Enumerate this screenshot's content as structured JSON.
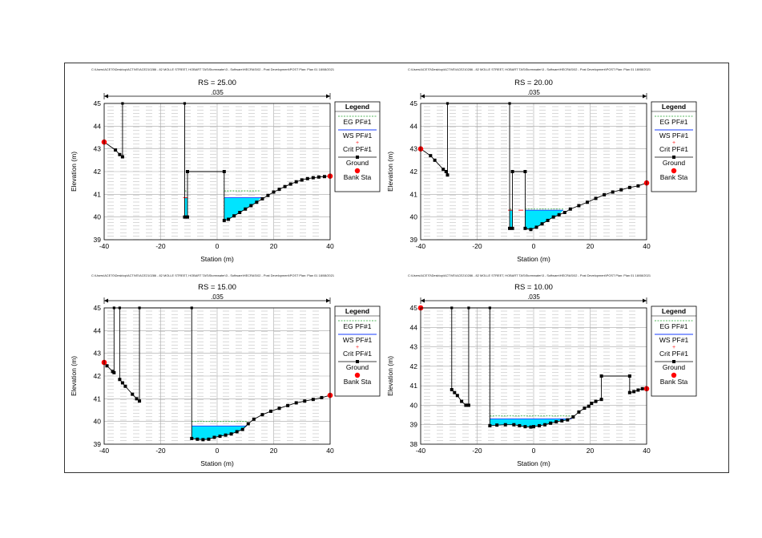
{
  "chart_data": [
    {
      "type": "line",
      "header": "C:\\Users\\ACE70\\Desktop\\ACTIVE\\ACE210286 - 82 MOLLE STREET, HOBART TAS\\Stormwater\\3 - Software\\HECRAS\\02 - Post Development\\POST     Plan: Plan 01     18/08/2021",
      "title": "RS = 25.00",
      "xlabel": "Station (m)",
      "ylabel": "Elevation (m)",
      "xlim": [
        -40,
        40
      ],
      "ylim": [
        39,
        45
      ],
      "xticks": [
        "-40",
        "-20",
        "0",
        "20",
        "40"
      ],
      "yticks": [
        "39",
        "40",
        "41",
        "42",
        "43",
        "44",
        "45"
      ],
      "manning": ".035",
      "grid": true,
      "legend_position": "right",
      "legend": {
        "title": "Legend",
        "items": [
          "EG PF#1",
          "WS PF#1",
          "Crit PF#1",
          "Ground",
          "Bank Sta"
        ]
      },
      "ground": [
        [
          -40,
          43.3
        ],
        [
          -36,
          42.95
        ],
        [
          -34.5,
          42.75
        ],
        [
          -33.5,
          42.65
        ],
        [
          -33.5,
          45
        ],
        [
          -11.5,
          45
        ],
        [
          -11.5,
          40.0
        ],
        [
          -10.5,
          40.0
        ],
        [
          -10.5,
          42.0
        ],
        [
          2.5,
          42.0
        ],
        [
          2.5,
          39.85
        ],
        [
          4,
          39.9
        ],
        [
          6,
          40.05
        ],
        [
          8,
          40.2
        ],
        [
          10,
          40.35
        ],
        [
          12,
          40.5
        ],
        [
          14,
          40.65
        ],
        [
          16,
          40.8
        ],
        [
          18,
          40.95
        ],
        [
          20,
          41.1
        ],
        [
          22,
          41.22
        ],
        [
          24,
          41.34
        ],
        [
          26,
          41.45
        ],
        [
          28,
          41.55
        ],
        [
          30,
          41.63
        ],
        [
          32,
          41.69
        ],
        [
          34,
          41.73
        ],
        [
          36,
          41.76
        ],
        [
          38,
          41.78
        ],
        [
          40,
          41.8
        ]
      ],
      "water_surface": 40.85,
      "energy_grade": 41.15,
      "wet_segments": [
        [
          -11.5,
          -10.5
        ],
        [
          2.5,
          15.5
        ]
      ],
      "crit_points": [
        [
          -11.2,
          40.85
        ]
      ],
      "bank_stations": [
        [
          -40,
          43.3
        ],
        [
          40,
          41.8
        ]
      ]
    },
    {
      "type": "line",
      "header": "C:\\Users\\ACE70\\Desktop\\ACTIVE\\ACE210286 - 82 MOLLE STREET, HOBART TAS\\Stormwater\\3 - Software\\HECRAS\\02 - Post Development\\POST     Plan: Plan 01     18/08/2021",
      "title": "RS = 20.00",
      "xlabel": "Station (m)",
      "ylabel": "Elevation (m)",
      "xlim": [
        -40,
        40
      ],
      "ylim": [
        39,
        45
      ],
      "xticks": [
        "-40",
        "-20",
        "0",
        "20",
        "40"
      ],
      "yticks": [
        "39",
        "40",
        "41",
        "42",
        "43",
        "44",
        "45"
      ],
      "manning": ".035",
      "grid": true,
      "legend_position": "right",
      "legend": {
        "title": "Legend",
        "items": [
          "EG PF#1",
          "WS PF#1",
          "Crit PF#1",
          "Ground",
          "Bank Sta"
        ]
      },
      "ground": [
        [
          -40,
          43.0
        ],
        [
          -36.5,
          42.7
        ],
        [
          -35,
          42.5
        ],
        [
          -32,
          42.1
        ],
        [
          -31,
          42.0
        ],
        [
          -30.5,
          41.85
        ],
        [
          -30.5,
          45
        ],
        [
          -8.5,
          45
        ],
        [
          -8.5,
          39.5
        ],
        [
          -7.5,
          39.5
        ],
        [
          -7.5,
          42.0
        ],
        [
          -3,
          42.0
        ],
        [
          -3,
          39.5
        ],
        [
          -1,
          39.45
        ],
        [
          1,
          39.55
        ],
        [
          3,
          39.7
        ],
        [
          5,
          39.85
        ],
        [
          7,
          40.0
        ],
        [
          9,
          40.1
        ],
        [
          11,
          40.2
        ],
        [
          13,
          40.35
        ],
        [
          16,
          40.5
        ],
        [
          19,
          40.65
        ],
        [
          22,
          40.82
        ],
        [
          25,
          40.98
        ],
        [
          28,
          41.1
        ],
        [
          31,
          41.2
        ],
        [
          34,
          41.3
        ],
        [
          37,
          41.37
        ],
        [
          40,
          41.5
        ]
      ],
      "water_surface": 40.3,
      "energy_grade": 40.35,
      "wet_segments": [
        [
          -8.5,
          -7.5
        ],
        [
          -3,
          10.5
        ]
      ],
      "crit_points": [
        [
          -8.2,
          40.3
        ],
        [
          -4.5,
          40.3
        ]
      ],
      "bank_stations": [
        [
          -40,
          43.0
        ],
        [
          40,
          41.5
        ]
      ]
    },
    {
      "type": "line",
      "header": "C:\\Users\\ACE70\\Desktop\\ACTIVE\\ACE210286 - 82 MOLLE STREET, HOBART TAS\\Stormwater\\3 - Software\\HECRAS\\02 - Post Development\\POST     Plan: Plan 01     18/08/2021",
      "title": "RS = 15.00",
      "xlabel": "Station (m)",
      "ylabel": "Elevation (m)",
      "xlim": [
        -40,
        40
      ],
      "ylim": [
        39,
        45
      ],
      "xticks": [
        "-40",
        "-20",
        "0",
        "20",
        "40"
      ],
      "yticks": [
        "39",
        "40",
        "41",
        "42",
        "43",
        "44",
        "45"
      ],
      "manning": ".035",
      "grid": true,
      "legend_position": "right",
      "legend": {
        "title": "Legend",
        "items": [
          "EG PF#1",
          "WS PF#1",
          "Crit PF#1",
          "Ground",
          "Bank Sta"
        ]
      },
      "ground": [
        [
          -40,
          42.6
        ],
        [
          -39,
          42.45
        ],
        [
          -37,
          42.2
        ],
        [
          -36.5,
          42.15
        ],
        [
          -36.5,
          45
        ],
        [
          -34.5,
          45
        ],
        [
          -34.5,
          41.85
        ],
        [
          -33.5,
          41.7
        ],
        [
          -32.5,
          41.55
        ],
        [
          -30,
          41.2
        ],
        [
          -28.5,
          41.0
        ],
        [
          -27.5,
          40.9
        ],
        [
          -27.5,
          45
        ],
        [
          -9,
          45
        ],
        [
          -9,
          39.25
        ],
        [
          -7,
          39.22
        ],
        [
          -5,
          39.2
        ],
        [
          -3,
          39.22
        ],
        [
          -1,
          39.3
        ],
        [
          1,
          39.35
        ],
        [
          3,
          39.4
        ],
        [
          5,
          39.45
        ],
        [
          7,
          39.55
        ],
        [
          9,
          39.65
        ],
        [
          11,
          39.9
        ],
        [
          13,
          40.1
        ],
        [
          16,
          40.3
        ],
        [
          19,
          40.45
        ],
        [
          22,
          40.58
        ],
        [
          25,
          40.7
        ],
        [
          28,
          40.82
        ],
        [
          31,
          40.9
        ],
        [
          34,
          40.97
        ],
        [
          37,
          41.05
        ],
        [
          40,
          41.15
        ]
      ],
      "water_surface": 39.8,
      "energy_grade": 40.0,
      "wet_segments": [
        [
          -9,
          10.5
        ]
      ],
      "crit_points": [],
      "bank_stations": [
        [
          -40,
          42.6
        ],
        [
          40,
          41.15
        ]
      ]
    },
    {
      "type": "line",
      "header": "C:\\Users\\ACE70\\Desktop\\ACTIVE\\ACE210286 - 82 MOLLE STREET, HOBART TAS\\Stormwater\\3 - Software\\HECRAS\\02 - Post Development\\POST     Plan: Plan 01     18/08/2021",
      "title": "RS = 10.00",
      "xlabel": "Station (m)",
      "ylabel": "Elevation (m)",
      "xlim": [
        -40,
        40
      ],
      "ylim": [
        38,
        45
      ],
      "xticks": [
        "-40",
        "-20",
        "0",
        "20",
        "40"
      ],
      "yticks": [
        "38",
        "39",
        "40",
        "41",
        "42",
        "43",
        "44",
        "45"
      ],
      "manning": ".035",
      "grid": true,
      "legend_position": "right",
      "legend": {
        "title": "Legend",
        "items": [
          "EG PF#1",
          "WS PF#1",
          "Crit PF#1",
          "Ground",
          "Bank Sta"
        ]
      },
      "ground": [
        [
          -40,
          45
        ],
        [
          -29,
          45
        ],
        [
          -29,
          40.8
        ],
        [
          -28,
          40.65
        ],
        [
          -27,
          40.5
        ],
        [
          -25.5,
          40.2
        ],
        [
          -24,
          40.0
        ],
        [
          -23,
          40.0
        ],
        [
          -23,
          45
        ],
        [
          -15.5,
          45
        ],
        [
          -15.5,
          38.95
        ],
        [
          -13,
          38.98
        ],
        [
          -10,
          39.0
        ],
        [
          -7,
          39.0
        ],
        [
          -5,
          38.95
        ],
        [
          -3,
          38.9
        ],
        [
          -1,
          38.88
        ],
        [
          0,
          38.9
        ],
        [
          2,
          38.95
        ],
        [
          4,
          39.0
        ],
        [
          6,
          39.08
        ],
        [
          8,
          39.15
        ],
        [
          10,
          39.2
        ],
        [
          12,
          39.25
        ],
        [
          14,
          39.4
        ],
        [
          16,
          39.65
        ],
        [
          18,
          39.85
        ],
        [
          19.5,
          39.95
        ],
        [
          20.5,
          40.1
        ],
        [
          22,
          40.2
        ],
        [
          24,
          40.3
        ],
        [
          24,
          41.5
        ],
        [
          34,
          41.5
        ],
        [
          34,
          40.65
        ],
        [
          35.5,
          40.7
        ],
        [
          37,
          40.78
        ],
        [
          38.5,
          40.85
        ],
        [
          40,
          40.85
        ]
      ],
      "water_surface": 39.3,
      "energy_grade": 39.45,
      "wet_segments": [
        [
          -15.5,
          13.5
        ]
      ],
      "crit_points": [],
      "bank_stations": [
        [
          -40,
          45
        ],
        [
          40,
          40.85
        ]
      ]
    }
  ]
}
